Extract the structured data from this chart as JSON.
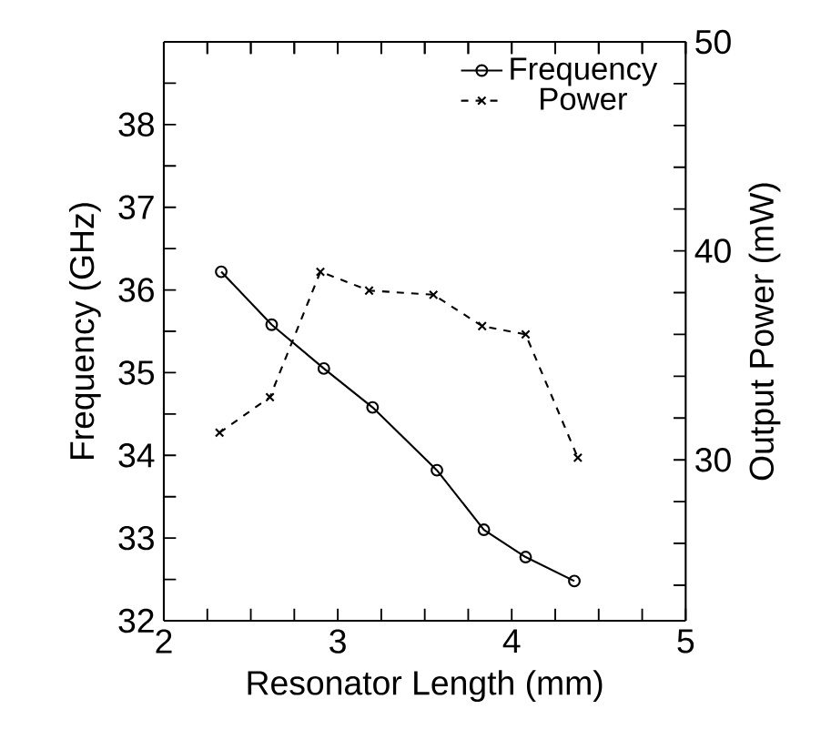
{
  "chart_data": {
    "type": "line",
    "xlabel": "Resonator Length (mm)",
    "ylabel": "Frequency  (GHz)",
    "y2label": "Output Power (mW)",
    "xlim": [
      2,
      5
    ],
    "xticks": [
      2,
      {
        "value": 2.25,
        "label": null
      },
      {
        "value": 2.5,
        "label": null
      },
      {
        "value": 2.75,
        "label": null
      },
      3,
      {
        "value": 3.25,
        "label": null
      },
      {
        "value": 3.5,
        "label": null
      },
      {
        "value": 3.75,
        "label": null
      },
      4,
      {
        "value": 4.25,
        "label": null
      },
      {
        "value": 4.5,
        "label": null
      },
      {
        "value": 4.75,
        "label": null
      },
      5
    ],
    "ylim": [
      32,
      39
    ],
    "yticks": [
      32,
      {
        "value": 32.5,
        "label": null
      },
      33,
      {
        "value": 33.5,
        "label": null
      },
      34,
      {
        "value": 34.5,
        "label": null
      },
      35,
      {
        "value": 35.5,
        "label": null
      },
      36,
      {
        "value": 36.5,
        "label": null
      },
      37,
      {
        "value": 37.5,
        "label": null
      },
      38,
      {
        "value": 38.5,
        "label": null
      }
    ],
    "y2lim": [
      22.3,
      50
    ],
    "y2ticks": [
      {
        "value": 24,
        "label": null
      },
      {
        "value": 26,
        "label": null
      },
      {
        "value": 28,
        "label": null
      },
      30,
      {
        "value": 32,
        "label": null
      },
      {
        "value": 34,
        "label": null
      },
      {
        "value": 36,
        "label": null
      },
      {
        "value": 38,
        "label": null
      },
      40,
      {
        "value": 42,
        "label": null
      },
      {
        "value": 44,
        "label": null
      },
      {
        "value": 46,
        "label": null
      },
      {
        "value": 48,
        "label": null
      },
      50
    ],
    "grid": false,
    "legend": "top right",
    "series": [
      {
        "name": "Frequency",
        "color": "#000000",
        "marker": "circle",
        "line_style": "solid",
        "x": [
          2.33,
          2.62,
          2.92,
          3.2,
          3.57,
          3.84,
          4.08,
          4.36
        ],
        "values": [
          36.22,
          35.58,
          35.05,
          34.58,
          33.82,
          33.1,
          32.77,
          32.48
        ]
      },
      {
        "name": "Power",
        "color": "#000000",
        "marker": "cross",
        "line_style": "dashed",
        "axis": "y2",
        "x": [
          2.32,
          2.61,
          2.9,
          3.18,
          3.55,
          3.83,
          4.08,
          4.38
        ],
        "values": [
          31.3,
          33.0,
          39.0,
          38.1,
          37.9,
          36.4,
          36.0,
          30.1
        ]
      }
    ]
  }
}
